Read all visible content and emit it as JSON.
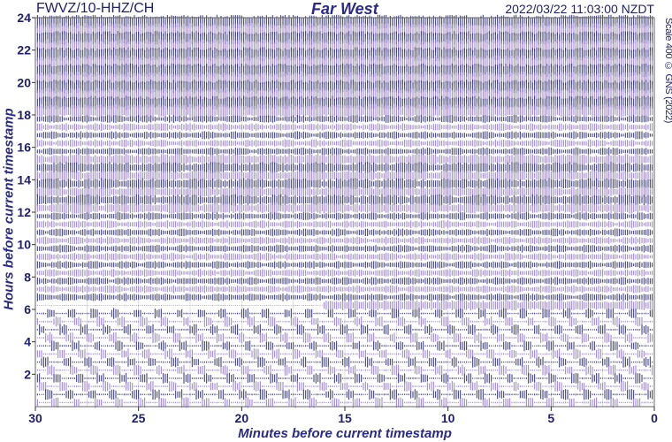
{
  "header": {
    "station": "FWVZ/10-HHZ/CH",
    "title": "Far West",
    "timestamp": "2022/03/22 11:03:00 NZDT",
    "scale_note": "Scale 400 © GNS (2022)"
  },
  "colors": {
    "trace_dark": "#1b1b6b",
    "trace_light": "#8a6fd6",
    "axis_text": "#1f1f6e",
    "grid": "#c8c8d8"
  },
  "chart_data": {
    "type": "line",
    "title": "Far West",
    "xlabel": "Minutes before current timestamp",
    "ylabel": "Hours before current timestamp",
    "xlim": [
      30,
      0
    ],
    "ylim": [
      0,
      24
    ],
    "x_ticks": [
      "30",
      "25",
      "20",
      "15",
      "10",
      "5",
      "0"
    ],
    "x_tick_values": [
      30,
      25,
      20,
      15,
      10,
      5,
      0
    ],
    "y_ticks": [
      "2",
      "4",
      "6",
      "8",
      "10",
      "12",
      "14",
      "16",
      "18",
      "20",
      "22",
      "24"
    ],
    "y_tick_values": [
      2,
      4,
      6,
      8,
      10,
      12,
      14,
      16,
      18,
      20,
      22,
      24
    ],
    "trace_count": 48,
    "trace_interval_hours": 0.5,
    "grid": true,
    "series": [
      {
        "hours_range": [
          0,
          6
        ],
        "style": "bursts"
      },
      {
        "hours_range": [
          6,
          6.5
        ],
        "style": "quiet-with-event",
        "event_minutes": [
          16,
          0
        ]
      },
      {
        "hours_range": [
          6.5,
          12
        ],
        "style": "moderate"
      },
      {
        "hours_range": [
          12,
          15.5
        ],
        "style": "dense"
      },
      {
        "hours_range": [
          15.5,
          18
        ],
        "style": "moderate"
      },
      {
        "hours_range": [
          18,
          24
        ],
        "style": "saturated"
      }
    ]
  }
}
